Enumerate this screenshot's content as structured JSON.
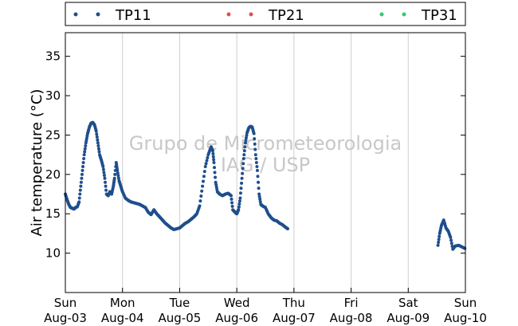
{
  "chart_data": {
    "type": "scatter",
    "title": "",
    "xlabel": "",
    "ylabel": "Air temperature (°C)",
    "watermark": [
      "Grupo de Micrometeorologia",
      "IAG / USP"
    ],
    "x_range_days": [
      "2014-08-03",
      "2014-08-10"
    ],
    "ylim": [
      5,
      38
    ],
    "yticks": [
      10,
      15,
      20,
      25,
      30,
      35
    ],
    "xticks": [
      {
        "day": "Sun",
        "date": "Aug-03"
      },
      {
        "day": "Mon",
        "date": "Aug-04"
      },
      {
        "day": "Tue",
        "date": "Aug-05"
      },
      {
        "day": "Wed",
        "date": "Aug-06"
      },
      {
        "day": "Thu",
        "date": "Aug-07"
      },
      {
        "day": "Fri",
        "date": "Aug-08"
      },
      {
        "day": "Sat",
        "date": "Aug-09"
      },
      {
        "day": "Sun",
        "date": "Aug-10"
      }
    ],
    "grid": "vertical",
    "legend_position": "top",
    "series": [
      {
        "name": "TP11",
        "color": "#1f4e8c",
        "points": [
          [
            0.0,
            17.5
          ],
          [
            0.03,
            16.8
          ],
          [
            0.06,
            16.2
          ],
          [
            0.09,
            15.8
          ],
          [
            0.12,
            15.7
          ],
          [
            0.15,
            15.6
          ],
          [
            0.18,
            15.8
          ],
          [
            0.21,
            15.9
          ],
          [
            0.24,
            16.5
          ],
          [
            0.27,
            18.5
          ],
          [
            0.3,
            20.5
          ],
          [
            0.33,
            22.5
          ],
          [
            0.36,
            24.0
          ],
          [
            0.39,
            25.2
          ],
          [
            0.42,
            26.0
          ],
          [
            0.45,
            26.5
          ],
          [
            0.48,
            26.6
          ],
          [
            0.51,
            26.3
          ],
          [
            0.54,
            25.5
          ],
          [
            0.57,
            24.0
          ],
          [
            0.6,
            22.5
          ],
          [
            0.63,
            21.8
          ],
          [
            0.66,
            21.0
          ],
          [
            0.69,
            19.5
          ],
          [
            0.72,
            17.5
          ],
          [
            0.75,
            17.3
          ],
          [
            0.78,
            17.8
          ],
          [
            0.81,
            17.5
          ],
          [
            0.84,
            18.5
          ],
          [
            0.86,
            19.5
          ],
          [
            0.89,
            21.5
          ],
          [
            0.91,
            20.5
          ],
          [
            0.94,
            19.2
          ],
          [
            0.97,
            18.5
          ],
          [
            1.0,
            17.8
          ],
          [
            1.05,
            17.0
          ],
          [
            1.1,
            16.7
          ],
          [
            1.15,
            16.5
          ],
          [
            1.2,
            16.4
          ],
          [
            1.25,
            16.3
          ],
          [
            1.3,
            16.2
          ],
          [
            1.35,
            16.0
          ],
          [
            1.4,
            15.8
          ],
          [
            1.45,
            15.2
          ],
          [
            1.5,
            14.9
          ],
          [
            1.55,
            15.5
          ],
          [
            1.6,
            15.0
          ],
          [
            1.65,
            14.6
          ],
          [
            1.7,
            14.2
          ],
          [
            1.75,
            13.8
          ],
          [
            1.8,
            13.5
          ],
          [
            1.85,
            13.2
          ],
          [
            1.9,
            13.0
          ],
          [
            1.95,
            13.1
          ],
          [
            2.0,
            13.2
          ],
          [
            2.05,
            13.5
          ],
          [
            2.1,
            13.8
          ],
          [
            2.15,
            14.0
          ],
          [
            2.2,
            14.3
          ],
          [
            2.25,
            14.6
          ],
          [
            2.3,
            15.0
          ],
          [
            2.35,
            16.0
          ],
          [
            2.4,
            18.5
          ],
          [
            2.45,
            21.0
          ],
          [
            2.5,
            22.5
          ],
          [
            2.55,
            23.5
          ],
          [
            2.58,
            23.0
          ],
          [
            2.6,
            21.5
          ],
          [
            2.63,
            19.0
          ],
          [
            2.66,
            17.8
          ],
          [
            2.7,
            17.5
          ],
          [
            2.75,
            17.3
          ],
          [
            2.8,
            17.5
          ],
          [
            2.85,
            17.6
          ],
          [
            2.9,
            17.3
          ],
          [
            2.93,
            15.5
          ],
          [
            2.97,
            15.2
          ],
          [
            3.0,
            15.0
          ],
          [
            3.03,
            15.5
          ],
          [
            3.06,
            17.0
          ],
          [
            3.09,
            19.5
          ],
          [
            3.12,
            22.0
          ],
          [
            3.15,
            24.0
          ],
          [
            3.18,
            25.3
          ],
          [
            3.21,
            25.9
          ],
          [
            3.24,
            26.1
          ],
          [
            3.27,
            26.0
          ],
          [
            3.3,
            25.2
          ],
          [
            3.33,
            22.5
          ],
          [
            3.36,
            20.5
          ],
          [
            3.39,
            17.5
          ],
          [
            3.42,
            16.2
          ],
          [
            3.45,
            16.0
          ],
          [
            3.5,
            15.8
          ],
          [
            3.55,
            15.0
          ],
          [
            3.6,
            14.5
          ],
          [
            3.65,
            14.2
          ],
          [
            3.7,
            14.1
          ],
          [
            3.75,
            13.8
          ],
          [
            3.8,
            13.6
          ],
          [
            3.85,
            13.3
          ],
          [
            3.89,
            13.1
          ],
          [
            6.52,
            11.0
          ],
          [
            6.55,
            12.5
          ],
          [
            6.58,
            13.5
          ],
          [
            6.62,
            14.2
          ],
          [
            6.66,
            13.2
          ],
          [
            6.7,
            12.8
          ],
          [
            6.74,
            12.0
          ],
          [
            6.78,
            10.5
          ],
          [
            6.82,
            10.9
          ],
          [
            6.88,
            11.0
          ],
          [
            6.94,
            10.8
          ],
          [
            6.99,
            10.6
          ]
        ]
      },
      {
        "name": "TP21",
        "color": "#d9534f",
        "points": []
      },
      {
        "name": "TP31",
        "color": "#2ecc71",
        "points": []
      }
    ]
  }
}
